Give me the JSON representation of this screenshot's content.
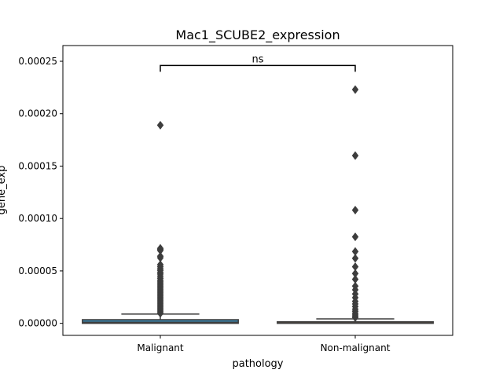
{
  "chart_data": {
    "type": "box",
    "title": "Mac1_SCUBE2_expression",
    "xlabel": "pathology",
    "ylabel": "gene_exp",
    "categories": [
      "Malignant",
      "Non-malignant"
    ],
    "ylim": [
      -1.15e-05,
      0.000265
    ],
    "yticks": [
      0.0,
      5e-05,
      0.0001,
      0.00015,
      0.0002,
      0.00025
    ],
    "ytick_labels": [
      "0.00000",
      "0.00005",
      "0.00010",
      "0.00015",
      "0.00020",
      "0.00025"
    ],
    "grid": false,
    "boxes": [
      {
        "category": "Malignant",
        "color": "#3b7ea1",
        "q1": 0.0,
        "median": 1e-06,
        "q3": 3.5e-06,
        "whisker_low": 0.0,
        "whisker_high": 8.8e-06,
        "outliers": [
          0.000189,
          7.15e-05,
          7.05e-05,
          6.95e-05,
          6.4e-05,
          6.25e-05,
          5.6e-05,
          5.4e-05,
          5.2e-05,
          5.05e-05,
          4.85e-05,
          4.7e-05,
          4.5e-05,
          4.3e-05,
          4.1e-05,
          3.95e-05,
          3.8e-05,
          3.65e-05,
          3.5e-05,
          3.35e-05,
          3.2e-05,
          3.05e-05,
          2.9e-05,
          2.75e-05,
          2.6e-05,
          2.45e-05,
          2.3e-05,
          2.15e-05,
          2e-05,
          1.85e-05,
          1.7e-05,
          1.55e-05,
          1.4e-05,
          1.25e-05,
          1.1e-05,
          9.5e-06
        ]
      },
      {
        "category": "Non-malignant",
        "color": "#c47a3a",
        "q1": 0.0,
        "median": 5e-07,
        "q3": 1.5e-06,
        "whisker_low": 0.0,
        "whisker_high": 4.2e-06,
        "outliers": [
          0.000223,
          0.00016,
          0.000108,
          8.25e-05,
          6.85e-05,
          6.2e-05,
          5.4e-05,
          4.75e-05,
          4.2e-05,
          3.55e-05,
          3.2e-05,
          2.8e-05,
          2.45e-05,
          2.1e-05,
          1.85e-05,
          1.6e-05,
          1.35e-05,
          1.15e-05,
          9.5e-06,
          8e-06,
          6.5e-06,
          5.5e-06
        ]
      }
    ],
    "annotation": {
      "text": "ns",
      "between": [
        "Malignant",
        "Non-malignant"
      ],
      "bracket_y": 0.000246,
      "bracket_bottom": 0.00024
    }
  }
}
